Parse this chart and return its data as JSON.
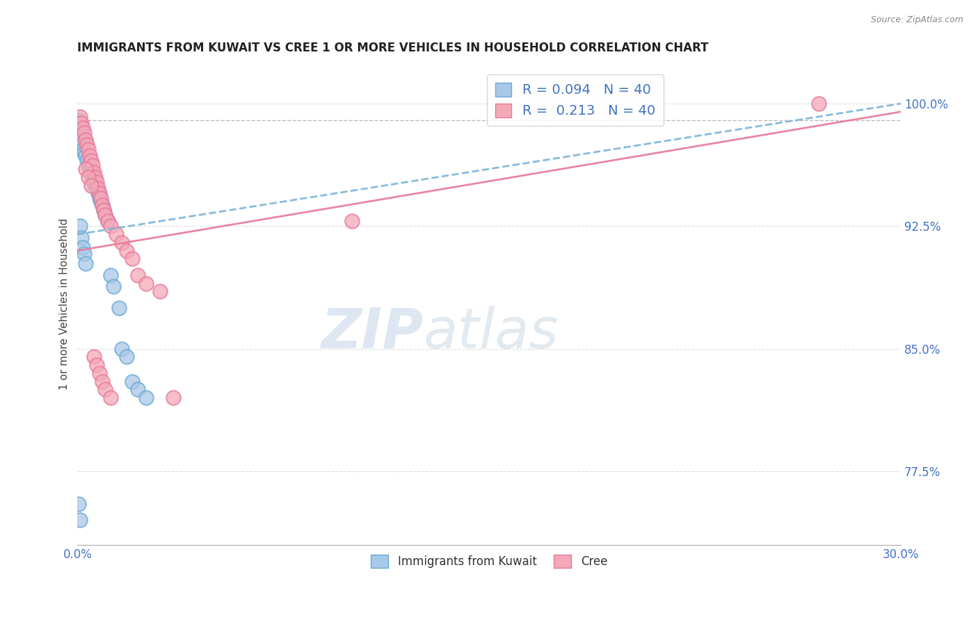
{
  "title": "IMMIGRANTS FROM KUWAIT VS CREE 1 OR MORE VEHICLES IN HOUSEHOLD CORRELATION CHART",
  "source": "Source: ZipAtlas.com",
  "xlabel": "",
  "ylabel": "1 or more Vehicles in Household",
  "xlim": [
    0.0,
    30.0
  ],
  "ylim": [
    73.0,
    102.5
  ],
  "yticks": [
    77.5,
    85.0,
    92.5,
    100.0
  ],
  "xticks": [
    0.0,
    30.0
  ],
  "xticklabels": [
    "0.0%",
    "30.0%"
  ],
  "yticklabels": [
    "77.5%",
    "85.0%",
    "92.5%",
    "100.0%"
  ],
  "r_kuwait": 0.094,
  "r_cree": 0.213,
  "n_kuwait": 40,
  "n_cree": 40,
  "color_kuwait": "#a8c8e8",
  "color_cree": "#f4a8b8",
  "color_kuwait_edge": "#6aaad4",
  "color_cree_edge": "#e87898",
  "color_kuwait_line": "#7ab4d8",
  "color_cree_line": "#e87898",
  "legend_border_color": "#cccccc",
  "title_color": "#222222",
  "gridline_color": "#dddddd",
  "dashed_line_color": "#bbbbbb",
  "kuwait_x": [
    0.05,
    0.08,
    0.1,
    0.12,
    0.15,
    0.18,
    0.2,
    0.22,
    0.25,
    0.3,
    0.35,
    0.4,
    0.45,
    0.5,
    0.55,
    0.6,
    0.65,
    0.7,
    0.75,
    0.8,
    0.85,
    0.9,
    0.95,
    1.0,
    1.1,
    1.2,
    1.3,
    1.5,
    1.6,
    1.8,
    2.0,
    2.2,
    2.5,
    0.1,
    0.15,
    0.2,
    0.25,
    0.3,
    0.05,
    0.08
  ],
  "kuwait_y": [
    99.0,
    98.5,
    98.8,
    98.2,
    98.0,
    97.8,
    97.5,
    97.2,
    97.0,
    96.8,
    96.5,
    96.2,
    96.0,
    95.8,
    95.5,
    95.2,
    95.0,
    94.8,
    94.5,
    94.2,
    94.0,
    93.8,
    93.5,
    93.2,
    92.8,
    89.5,
    88.8,
    87.5,
    85.0,
    84.5,
    83.0,
    82.5,
    82.0,
    92.5,
    91.8,
    91.2,
    90.8,
    90.2,
    75.5,
    74.5
  ],
  "cree_x": [
    0.1,
    0.15,
    0.2,
    0.25,
    0.3,
    0.35,
    0.4,
    0.45,
    0.5,
    0.55,
    0.6,
    0.65,
    0.7,
    0.75,
    0.8,
    0.85,
    0.9,
    0.95,
    1.0,
    1.1,
    1.2,
    1.4,
    1.6,
    1.8,
    2.0,
    2.2,
    2.5,
    3.0,
    0.3,
    0.4,
    0.5,
    0.6,
    0.7,
    0.8,
    0.9,
    1.0,
    1.2,
    10.0,
    3.5,
    27.0
  ],
  "cree_y": [
    99.2,
    98.8,
    98.5,
    98.2,
    97.8,
    97.5,
    97.2,
    96.8,
    96.5,
    96.2,
    95.8,
    95.5,
    95.2,
    94.8,
    94.5,
    94.2,
    93.8,
    93.5,
    93.2,
    92.8,
    92.5,
    92.0,
    91.5,
    91.0,
    90.5,
    89.5,
    89.0,
    88.5,
    96.0,
    95.5,
    95.0,
    84.5,
    84.0,
    83.5,
    83.0,
    82.5,
    82.0,
    92.8,
    82.0,
    100.0
  ]
}
